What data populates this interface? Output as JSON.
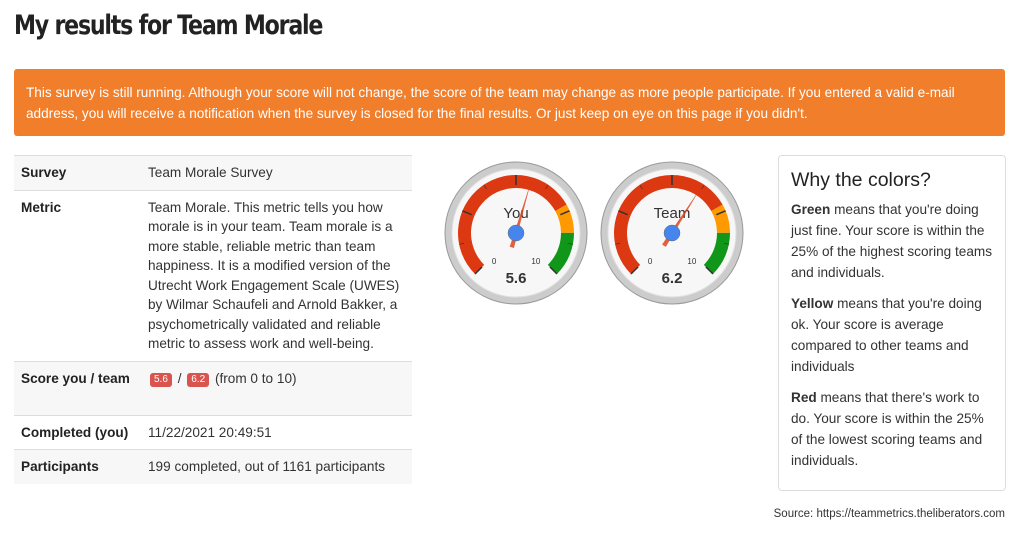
{
  "title": "My results for Team Morale",
  "banner": "This survey is still running. Although your score will not change, the score of the team may change as more people participate. If you entered a valid e-mail address, you will receive a notification when the survey is closed for the final results. Or just keep on eye on this page if you didn't.",
  "table": {
    "survey_label": "Survey",
    "survey_value": "Team Morale Survey",
    "metric_label": "Metric",
    "metric_value": "Team Morale. This metric tells you how morale is in your team. Team morale is a more stable, reliable metric than team happiness. It is a modified version of the Utrecht Work Engagement Scale (UWES) by Wilmar Schaufeli and Arnold Bakker, a psychometrically validated and reliable metric to assess work and well-being.",
    "score_label": "Score you / team",
    "score_you": "5.6",
    "score_sep": "/",
    "score_team": "6.2",
    "score_range": "(from 0 to 10)",
    "completed_label": "Completed (you)",
    "completed_value": "11/22/2021 20:49:51",
    "participants_label": "Participants",
    "participants_value": "199 completed, out of 1161 participants"
  },
  "gauges": [
    {
      "label": "You",
      "value": 5.6,
      "display": "5.6",
      "min_label": "0",
      "max_label": "10"
    },
    {
      "label": "Team",
      "value": 6.2,
      "display": "6.2",
      "min_label": "0",
      "max_label": "10"
    }
  ],
  "gauge_bands": {
    "red": [
      0,
      7.25
    ],
    "yellow": [
      7.25,
      8.33
    ],
    "green": [
      8.33,
      10
    ]
  },
  "colors": {
    "red": "#dc3912",
    "yellow": "#ff9900",
    "green": "#109618",
    "needle": "#dc3912",
    "hub": "#4684ee",
    "banner": "#f07e2b"
  },
  "panel": {
    "title": "Why the colors?",
    "green_word": "Green",
    "green_text": " means that you're doing just fine. Your score is within the 25% of the highest scoring teams and individuals.",
    "yellow_word": "Yellow",
    "yellow_text": " means that you're doing ok. Your score is average compared to other teams and individuals",
    "red_word": "Red",
    "red_text": " means that there's work to do. Your score is within the 25% of the lowest scoring teams and individuals."
  },
  "source": "Source: https://teammetrics.theliberators.com"
}
